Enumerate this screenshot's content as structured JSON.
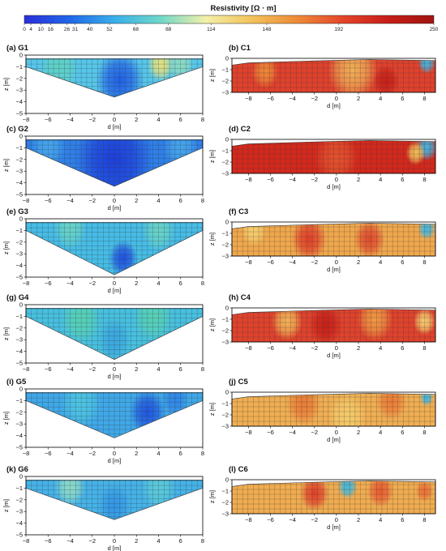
{
  "colorbar": {
    "label": "Resistivity [Ω · m]",
    "ticks": [
      0,
      4,
      10,
      16,
      26,
      31,
      40,
      52,
      68,
      88,
      114,
      148,
      192,
      250
    ],
    "colors": [
      "#2a2fd8",
      "#1f67e8",
      "#3ab0ea",
      "#6fd8c8",
      "#f3f0a8",
      "#f2c25a",
      "#ee8a38",
      "#e4452a",
      "#c71e18",
      "#a0140f"
    ]
  },
  "chart_data": [
    {
      "type": "heatmap",
      "title": "(a) G1",
      "xlabel": "d [m]",
      "ylabel": "z [m]",
      "xlim": [
        -8,
        8
      ],
      "ylim": [
        -5,
        0
      ],
      "xticks": [
        -8,
        -6,
        -4,
        -2,
        0,
        2,
        4,
        6,
        8
      ],
      "yticks": [
        -5,
        -4,
        -3,
        -2,
        -1,
        0
      ],
      "base": "#56c6ea",
      "blobs": [
        {
          "x": 0.5,
          "z": -2.2,
          "r": 2.2,
          "color": "#1f5fe6"
        },
        {
          "x": -5.0,
          "z": -1.0,
          "r": 1.8,
          "color": "#5fd2c4"
        },
        {
          "x": 4.2,
          "z": -0.8,
          "r": 1.2,
          "color": "#e8e27a"
        },
        {
          "x": 6.0,
          "z": -0.8,
          "r": 1.2,
          "color": "#8fdcc0"
        }
      ]
    },
    {
      "type": "heatmap",
      "title": "(b) C1",
      "xlabel": "d [m]",
      "ylabel": "z [m]",
      "xlim": [
        -9.5,
        9
      ],
      "ylim": [
        -3,
        0
      ],
      "xticks": [
        -8,
        -6,
        -4,
        -2,
        0,
        2,
        4,
        6,
        8
      ],
      "yticks": [
        -3,
        -2,
        -1,
        0
      ],
      "base": "#e0412c",
      "blobs": [
        {
          "x": 1.5,
          "z": -1.0,
          "r": 2.3,
          "color": "#f0b058"
        },
        {
          "x": -6.5,
          "z": -1.2,
          "r": 1.2,
          "color": "#ee8a38"
        },
        {
          "x": 8.2,
          "z": -0.4,
          "r": 0.8,
          "color": "#3bb7e6"
        },
        {
          "x": 4.5,
          "z": -2.0,
          "r": 1.2,
          "color": "#c81f18"
        }
      ]
    },
    {
      "type": "heatmap",
      "title": "(c) G2",
      "xlabel": "d [m]",
      "ylabel": "z [m]",
      "xlim": [
        -8,
        8
      ],
      "ylim": [
        -5,
        0
      ],
      "xticks": [
        -8,
        -6,
        -4,
        -2,
        0,
        2,
        4,
        6,
        8
      ],
      "yticks": [
        -5,
        -4,
        -3,
        -2,
        -1,
        0
      ],
      "base": "#2f7fe8",
      "blobs": [
        {
          "x": 0.0,
          "z": -2.0,
          "r": 3.5,
          "color": "#1c3fdc"
        },
        {
          "x": -6.0,
          "z": -0.9,
          "r": 1.6,
          "color": "#46a6ec"
        },
        {
          "x": 6.0,
          "z": -0.9,
          "r": 1.6,
          "color": "#46a6ec"
        }
      ]
    },
    {
      "type": "heatmap",
      "title": "(d) C2",
      "xlabel": "d [m]",
      "ylabel": "z [m]",
      "xlim": [
        -9.5,
        9
      ],
      "ylim": [
        -3,
        0
      ],
      "xticks": [
        -8,
        -6,
        -4,
        -2,
        0,
        2,
        4,
        6,
        8
      ],
      "yticks": [
        -3,
        -2,
        -1,
        0
      ],
      "base": "#d4281c",
      "blobs": [
        {
          "x": 0.0,
          "z": -1.6,
          "r": 2.0,
          "color": "#e4522e"
        },
        {
          "x": 8.2,
          "z": -0.7,
          "r": 1.0,
          "color": "#3bb7e6"
        },
        {
          "x": 7.2,
          "z": -1.2,
          "r": 0.9,
          "color": "#f2c25a"
        }
      ]
    },
    {
      "type": "heatmap",
      "title": "(e) G3",
      "xlabel": "d [m]",
      "ylabel": "z [m]",
      "xlim": [
        -8,
        8
      ],
      "ylim": [
        -5,
        0
      ],
      "xticks": [
        -8,
        -6,
        -4,
        -2,
        0,
        2,
        4,
        6,
        8
      ],
      "yticks": [
        -5,
        -4,
        -3,
        -2,
        -1,
        0
      ],
      "base": "#46bce6",
      "blobs": [
        {
          "x": 0.8,
          "z": -3.4,
          "r": 1.3,
          "color": "#1f50e0"
        },
        {
          "x": -4.0,
          "z": -0.8,
          "r": 1.5,
          "color": "#6ad4c6"
        },
        {
          "x": 4.0,
          "z": -1.0,
          "r": 1.5,
          "color": "#6ad4c6"
        }
      ]
    },
    {
      "type": "heatmap",
      "title": "(f) C3",
      "xlabel": "d [m]",
      "ylabel": "z [m]",
      "xlim": [
        -9.5,
        9
      ],
      "ylim": [
        -3,
        0
      ],
      "xticks": [
        -8,
        -6,
        -4,
        -2,
        0,
        2,
        4,
        6,
        8
      ],
      "yticks": [
        -3,
        -2,
        -1,
        0
      ],
      "base": "#f0a84c",
      "blobs": [
        {
          "x": -2.5,
          "z": -1.5,
          "r": 1.6,
          "color": "#e03e28"
        },
        {
          "x": 3.0,
          "z": -1.5,
          "r": 1.4,
          "color": "#e04a2c"
        },
        {
          "x": 8.2,
          "z": -0.6,
          "r": 0.8,
          "color": "#3bb7e6"
        },
        {
          "x": -7.5,
          "z": -0.8,
          "r": 1.1,
          "color": "#f5d070"
        }
      ]
    },
    {
      "type": "heatmap",
      "title": "(g) G4",
      "xlabel": "d [m]",
      "ylabel": "z [m]",
      "xlim": [
        -8,
        8
      ],
      "ylim": [
        -5,
        0
      ],
      "xticks": [
        -8,
        -6,
        -4,
        -2,
        0,
        2,
        4,
        6,
        8
      ],
      "yticks": [
        -5,
        -4,
        -3,
        -2,
        -1,
        0
      ],
      "base": "#47c0e0",
      "blobs": [
        {
          "x": -3.0,
          "z": -1.2,
          "r": 1.8,
          "color": "#58d2b4"
        },
        {
          "x": 3.5,
          "z": -1.0,
          "r": 1.8,
          "color": "#58d2b4"
        },
        {
          "x": 0.0,
          "z": -3.0,
          "r": 1.5,
          "color": "#3aa6e0"
        }
      ]
    },
    {
      "type": "heatmap",
      "title": "(h) C4",
      "xlabel": "d [m]",
      "ylabel": "z [m]",
      "xlim": [
        -9.5,
        9
      ],
      "ylim": [
        -3,
        0
      ],
      "xticks": [
        -8,
        -6,
        -4,
        -2,
        0,
        2,
        4,
        6,
        8
      ],
      "yticks": [
        -3,
        -2,
        -1,
        0
      ],
      "base": "#e0422c",
      "blobs": [
        {
          "x": -4.5,
          "z": -1.2,
          "r": 1.4,
          "color": "#f2b658"
        },
        {
          "x": 3.5,
          "z": -1.0,
          "r": 1.6,
          "color": "#ef9a44"
        },
        {
          "x": 8.0,
          "z": -1.2,
          "r": 1.0,
          "color": "#f5d070"
        },
        {
          "x": -1.0,
          "z": -1.5,
          "r": 1.5,
          "color": "#c81f18"
        }
      ]
    },
    {
      "type": "heatmap",
      "title": "(i) G5",
      "xlabel": "d [m]",
      "ylabel": "z [m]",
      "xlim": [
        -8,
        8
      ],
      "ylim": [
        -5,
        0
      ],
      "xticks": [
        -8,
        -6,
        -4,
        -2,
        0,
        2,
        4,
        6,
        8
      ],
      "yticks": [
        -5,
        -4,
        -3,
        -2,
        -1,
        0
      ],
      "base": "#3fa8e8",
      "blobs": [
        {
          "x": 3.0,
          "z": -2.0,
          "r": 1.6,
          "color": "#1f55e0"
        },
        {
          "x": -3.0,
          "z": -1.2,
          "r": 1.8,
          "color": "#4ec6e2"
        },
        {
          "x": 5.5,
          "z": -0.9,
          "r": 1.2,
          "color": "#2f84e6"
        }
      ]
    },
    {
      "type": "heatmap",
      "title": "(j) C5",
      "xlabel": "d [m]",
      "ylabel": "z [m]",
      "xlim": [
        -9.5,
        9
      ],
      "ylim": [
        -3,
        0
      ],
      "xticks": [
        -8,
        -6,
        -4,
        -2,
        0,
        2,
        4,
        6,
        8
      ],
      "yticks": [
        -3,
        -2,
        -1,
        0
      ],
      "base": "#f0ae52",
      "blobs": [
        {
          "x": -3.0,
          "z": -1.0,
          "r": 1.6,
          "color": "#ea7a36"
        },
        {
          "x": 5.0,
          "z": -0.8,
          "r": 1.4,
          "color": "#ea7a36"
        },
        {
          "x": 8.2,
          "z": -0.5,
          "r": 0.6,
          "color": "#3bb7e6"
        },
        {
          "x": 1.0,
          "z": -2.2,
          "r": 1.8,
          "color": "#f5cc6c"
        }
      ]
    },
    {
      "type": "heatmap",
      "title": "(k) G6",
      "xlabel": "d [m]",
      "ylabel": "z [m]",
      "xlim": [
        -8,
        8
      ],
      "ylim": [
        -5,
        0
      ],
      "xticks": [
        -8,
        -6,
        -4,
        -2,
        0,
        2,
        4,
        6,
        8
      ],
      "yticks": [
        -5,
        -4,
        -3,
        -2,
        -1,
        0
      ],
      "base": "#45b2e8",
      "blobs": [
        {
          "x": -4.0,
          "z": -0.9,
          "r": 1.4,
          "color": "#8fdcc8"
        },
        {
          "x": 0.0,
          "z": -2.5,
          "r": 1.5,
          "color": "#3296e6"
        },
        {
          "x": 4.0,
          "z": -1.0,
          "r": 1.6,
          "color": "#5ccbd8"
        }
      ]
    },
    {
      "type": "heatmap",
      "title": "(l) C6",
      "xlabel": "d [m]",
      "ylabel": "z [m]",
      "xlim": [
        -9.5,
        9
      ],
      "ylim": [
        -3,
        0
      ],
      "xticks": [
        -8,
        -6,
        -4,
        -2,
        0,
        2,
        4,
        6,
        8
      ],
      "yticks": [
        -3,
        -2,
        -1,
        0
      ],
      "base": "#f0ac50",
      "blobs": [
        {
          "x": 1.0,
          "z": -0.6,
          "r": 0.9,
          "color": "#3cb8e4"
        },
        {
          "x": -2.0,
          "z": -1.2,
          "r": 1.3,
          "color": "#e03e28"
        },
        {
          "x": 4.0,
          "z": -1.0,
          "r": 1.2,
          "color": "#e85a30"
        },
        {
          "x": 8.0,
          "z": -1.0,
          "r": 0.8,
          "color": "#ea6e34"
        }
      ]
    }
  ]
}
